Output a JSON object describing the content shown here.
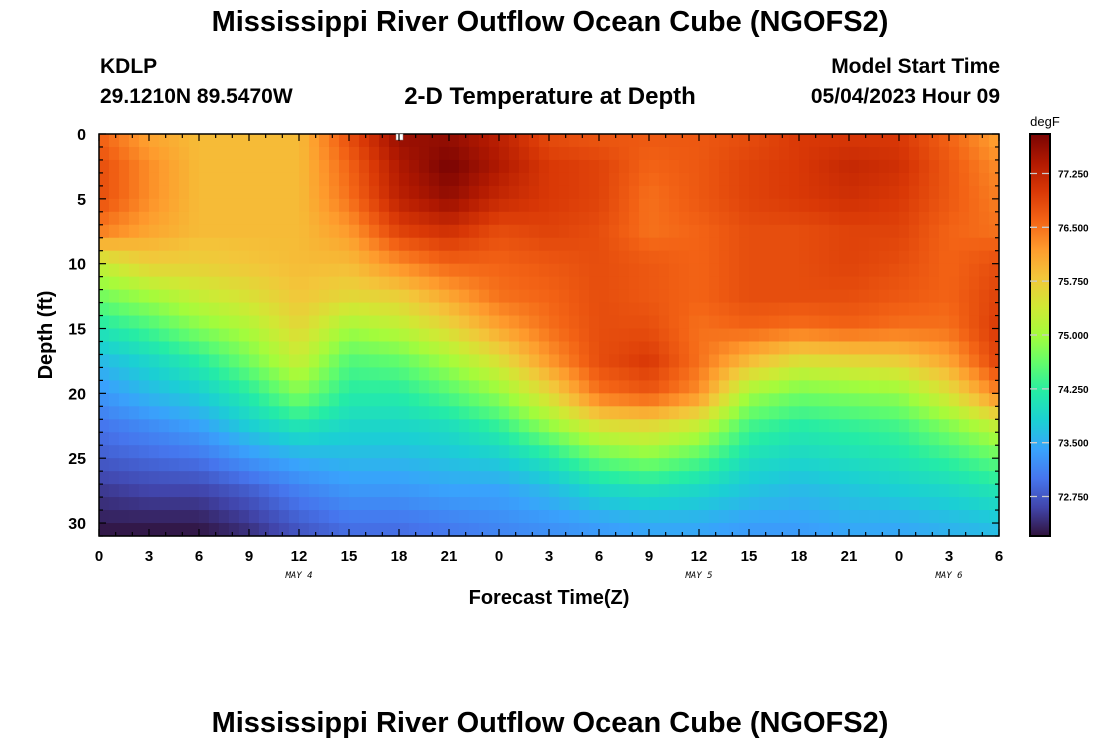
{
  "page": {
    "title": "Mississippi River Outflow Ocean Cube (NGOFS2)",
    "station_id": "KDLP",
    "station_coords": "29.1210N  89.5470W",
    "subtitle": "2-D Temperature at Depth",
    "model_start_label": "Model Start Time",
    "model_start_value": "05/04/2023 Hour 09",
    "footer_title": "Mississippi River Outflow Ocean Cube (NGOFS2)"
  },
  "chart_data": {
    "type": "heatmap",
    "title": "2-D Temperature at Depth",
    "xlabel": "Forecast Time(Z)",
    "ylabel": "Depth (ft)",
    "x_range_hours": [
      0,
      54
    ],
    "x_tick_labels": [
      "0",
      "3",
      "6",
      "9",
      "12",
      "15",
      "18",
      "21",
      "0",
      "3",
      "6",
      "9",
      "12",
      "15",
      "18",
      "21",
      "0",
      "3",
      "6"
    ],
    "day_labels": [
      {
        "label": "MAY 4",
        "hour": 12
      },
      {
        "label": "MAY 5",
        "hour": 36
      },
      {
        "label": "MAY 6",
        "hour": 51
      }
    ],
    "y_range_ft": [
      0,
      31
    ],
    "y_tick_labels": [
      "0",
      "5",
      "10",
      "15",
      "20",
      "25",
      "30"
    ],
    "y_tick_values": [
      0,
      5,
      10,
      15,
      20,
      25,
      30
    ],
    "colorbar": {
      "unit": "degF",
      "range": [
        72.2,
        77.8
      ],
      "tick_values": [
        77.25,
        76.5,
        75.75,
        75.0,
        74.25,
        73.5,
        72.75
      ],
      "tick_labels": [
        "77.250",
        "76.500",
        "75.750",
        "75.000",
        "74.250",
        "73.500",
        "72.750"
      ],
      "colors": [
        "#30123b",
        "#4145ab",
        "#4675ed",
        "#39a2fc",
        "#1bcfd4",
        "#24eca6",
        "#61fc6c",
        "#a4fc3b",
        "#d1e834",
        "#f3c63a",
        "#fe9b2d",
        "#f36315",
        "#d93806",
        "#b11901",
        "#7a0403"
      ]
    },
    "temperature_degF": {
      "time_hours": [
        0,
        3,
        6,
        9,
        12,
        15,
        18,
        21,
        24,
        27,
        30,
        33,
        36,
        39,
        42,
        45,
        48,
        51,
        54
      ],
      "depth_ft": [
        0,
        2.5,
        5,
        7.5,
        10,
        12.5,
        15,
        17.5,
        20,
        22.5,
        25,
        27.5,
        30,
        31
      ],
      "values": [
        [
          76.6,
          76.1,
          75.9,
          75.9,
          75.9,
          76.8,
          77.6,
          77.6,
          77.3,
          76.8,
          76.7,
          76.7,
          76.7,
          76.8,
          77.0,
          77.0,
          77.0,
          76.6,
          76.1
        ],
        [
          76.8,
          76.3,
          75.9,
          75.9,
          75.9,
          76.6,
          77.4,
          77.8,
          77.4,
          77.0,
          76.9,
          76.6,
          76.7,
          76.9,
          77.0,
          77.2,
          77.1,
          76.7,
          76.3
        ],
        [
          76.8,
          76.3,
          75.9,
          75.9,
          75.9,
          76.5,
          77.3,
          77.6,
          77.2,
          77.0,
          76.9,
          76.5,
          76.7,
          76.9,
          77.0,
          77.1,
          77.0,
          76.7,
          76.4
        ],
        [
          76.4,
          76.1,
          75.9,
          75.9,
          75.9,
          76.2,
          76.9,
          77.1,
          76.8,
          76.9,
          76.8,
          76.5,
          76.6,
          76.8,
          76.8,
          76.9,
          76.9,
          76.6,
          76.5
        ],
        [
          75.3,
          75.7,
          75.7,
          75.8,
          75.9,
          75.9,
          76.3,
          76.6,
          76.6,
          76.7,
          76.8,
          76.7,
          76.6,
          76.8,
          76.8,
          76.9,
          76.8,
          76.6,
          76.8
        ],
        [
          74.7,
          75.0,
          75.3,
          75.5,
          75.8,
          75.6,
          75.7,
          76.1,
          76.5,
          76.6,
          76.8,
          76.7,
          76.6,
          76.8,
          76.8,
          76.8,
          76.7,
          76.6,
          76.9
        ],
        [
          74.1,
          74.4,
          74.8,
          75.1,
          75.6,
          75.0,
          75.2,
          75.6,
          76.1,
          76.5,
          76.8,
          76.8,
          76.5,
          76.6,
          76.5,
          76.6,
          76.5,
          76.5,
          77.0
        ],
        [
          73.6,
          73.9,
          74.2,
          74.7,
          75.3,
          74.5,
          74.6,
          75.0,
          75.5,
          76.2,
          76.8,
          77.0,
          76.5,
          75.9,
          75.5,
          75.6,
          75.7,
          76.1,
          76.9
        ],
        [
          73.3,
          73.6,
          73.8,
          74.2,
          74.8,
          74.2,
          74.2,
          74.5,
          74.9,
          75.6,
          76.5,
          76.7,
          76.3,
          75.0,
          74.7,
          74.8,
          74.9,
          75.5,
          76.4
        ],
        [
          73.0,
          73.2,
          73.4,
          73.8,
          74.1,
          73.9,
          73.9,
          74.0,
          74.3,
          74.9,
          75.5,
          75.6,
          75.3,
          74.4,
          74.2,
          74.3,
          74.4,
          74.8,
          75.3
        ],
        [
          72.8,
          72.9,
          73.0,
          73.3,
          73.5,
          73.6,
          73.6,
          73.7,
          73.8,
          74.1,
          74.6,
          74.8,
          74.5,
          74.0,
          73.9,
          74.0,
          74.1,
          74.3,
          74.6
        ],
        [
          72.5,
          72.6,
          72.6,
          72.8,
          73.1,
          73.3,
          73.3,
          73.4,
          73.4,
          73.6,
          73.9,
          74.0,
          73.9,
          73.7,
          73.6,
          73.7,
          73.8,
          73.9,
          74.1
        ],
        [
          72.3,
          72.3,
          72.3,
          72.5,
          72.8,
          73.0,
          73.0,
          73.1,
          73.2,
          73.3,
          73.4,
          73.5,
          73.5,
          73.4,
          73.4,
          73.5,
          73.5,
          73.6,
          73.7
        ],
        [
          72.2,
          72.2,
          72.2,
          72.4,
          72.7,
          72.9,
          72.9,
          73.0,
          73.1,
          73.2,
          73.3,
          73.4,
          73.4,
          73.3,
          73.3,
          73.4,
          73.4,
          73.5,
          73.6
        ]
      ]
    }
  }
}
